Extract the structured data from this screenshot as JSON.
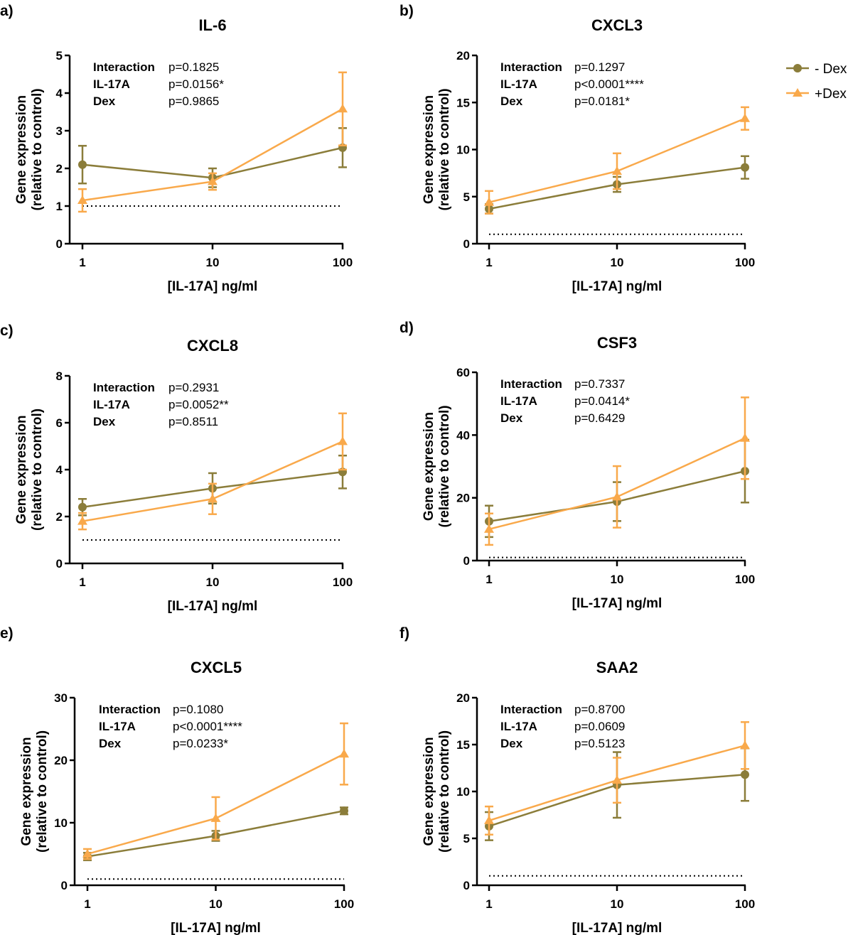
{
  "colors": {
    "minus_dex": "#8b7d3a",
    "plus_dex": "#f9a94b",
    "axis": "#000000"
  },
  "legend": {
    "placement": "top-right",
    "items": [
      {
        "label": "- Dex",
        "marker": "circle",
        "color": "#8b7d3a"
      },
      {
        "label": "+Dex",
        "marker": "triangle",
        "color": "#f9a94b"
      }
    ]
  },
  "chart_data": [
    {
      "panel": "a)",
      "type": "line",
      "title": "IL-6",
      "xlabel": "[IL-17A] ng/ml",
      "ylabel": [
        "Gene expression",
        "(relative to control)"
      ],
      "x": [
        1,
        10,
        100
      ],
      "xscale": "log",
      "xticks": [
        "1",
        "10",
        "100"
      ],
      "ylim": [
        0,
        5
      ],
      "yticks": [
        0,
        1,
        2,
        3,
        4,
        5
      ],
      "reference_line": 1,
      "stats": [
        {
          "label": "Interaction",
          "p": "p=0.1825"
        },
        {
          "label": "IL-17A",
          "p": "p=0.0156*"
        },
        {
          "label": "Dex",
          "p": "p=0.9865"
        }
      ],
      "series": [
        {
          "name": "- Dex",
          "values": [
            2.1,
            1.75,
            2.55
          ],
          "error": [
            0.5,
            0.25,
            0.52
          ]
        },
        {
          "name": "+Dex",
          "values": [
            1.15,
            1.65,
            3.58
          ],
          "error": [
            0.3,
            0.22,
            0.97
          ]
        }
      ]
    },
    {
      "panel": "b)",
      "type": "line",
      "title": "CXCL3",
      "xlabel": "[IL-17A] ng/ml",
      "ylabel": [
        "Gene expression",
        "(relative to control)"
      ],
      "x": [
        1,
        10,
        100
      ],
      "xscale": "log",
      "xticks": [
        "1",
        "10",
        "100"
      ],
      "ylim": [
        0,
        20
      ],
      "yticks": [
        0,
        5,
        10,
        15,
        20
      ],
      "reference_line": 1,
      "stats": [
        {
          "label": "Interaction",
          "p": "p=0.1297"
        },
        {
          "label": "IL-17A",
          "p": "p<0.0001****"
        },
        {
          "label": "Dex",
          "p": "p=0.0181*"
        }
      ],
      "series": [
        {
          "name": "- Dex",
          "values": [
            3.7,
            6.3,
            8.1
          ],
          "error": [
            0.5,
            0.8,
            1.2
          ]
        },
        {
          "name": "+Dex",
          "values": [
            4.4,
            7.7,
            13.3
          ],
          "error": [
            1.2,
            1.9,
            1.2
          ]
        }
      ]
    },
    {
      "panel": "c)",
      "type": "line",
      "title": "CXCL8",
      "xlabel": "[IL-17A] ng/ml",
      "ylabel": [
        "Gene expression",
        "(relative to control)"
      ],
      "x": [
        1,
        10,
        100
      ],
      "xscale": "log",
      "xticks": [
        "1",
        "10",
        "100"
      ],
      "ylim": [
        0,
        8
      ],
      "yticks": [
        0,
        2,
        4,
        6,
        8
      ],
      "reference_line": 1,
      "stats": [
        {
          "label": "Interaction",
          "p": "p=0.2931"
        },
        {
          "label": "IL-17A",
          "p": "p=0.0052**"
        },
        {
          "label": "Dex",
          "p": "p=0.8511"
        }
      ],
      "series": [
        {
          "name": "- Dex",
          "values": [
            2.4,
            3.2,
            3.9
          ],
          "error": [
            0.35,
            0.65,
            0.7
          ]
        },
        {
          "name": "+Dex",
          "values": [
            1.8,
            2.75,
            5.2
          ],
          "error": [
            0.35,
            0.65,
            1.2
          ]
        }
      ]
    },
    {
      "panel": "d)",
      "type": "line",
      "title": "CSF3",
      "xlabel": "[IL-17A] ng/ml",
      "ylabel": [
        "Gene expression",
        "(relative to control)"
      ],
      "x": [
        1,
        10,
        100
      ],
      "xscale": "log",
      "xticks": [
        "1",
        "10",
        "100"
      ],
      "ylim": [
        0,
        60
      ],
      "yticks": [
        0,
        20,
        40,
        60
      ],
      "reference_line": 1,
      "stats": [
        {
          "label": "Interaction",
          "p": "p=0.7337"
        },
        {
          "label": "IL-17A",
          "p": "p=0.0414*"
        },
        {
          "label": "Dex",
          "p": "p=0.6429"
        }
      ],
      "series": [
        {
          "name": "- Dex",
          "values": [
            12.5,
            18.8,
            28.5
          ],
          "error": [
            5,
            6.2,
            10
          ]
        },
        {
          "name": "+Dex",
          "values": [
            10,
            20.3,
            39
          ],
          "error": [
            5,
            9.8,
            13
          ]
        }
      ]
    },
    {
      "panel": "e)",
      "type": "line",
      "title": "CXCL5",
      "xlabel": "[IL-17A] ng/ml",
      "ylabel": [
        "Gene expression",
        "(relative to control)"
      ],
      "x": [
        1,
        10,
        100
      ],
      "xscale": "log",
      "xticks": [
        "1",
        "10",
        "100"
      ],
      "ylim": [
        0,
        30
      ],
      "yticks": [
        0,
        10,
        20,
        30
      ],
      "reference_line": 1,
      "stats": [
        {
          "label": "Interaction",
          "p": "p=0.1080"
        },
        {
          "label": "IL-17A",
          "p": "p<0.0001****"
        },
        {
          "label": "Dex",
          "p": "p=0.0233*"
        }
      ],
      "series": [
        {
          "name": "- Dex",
          "values": [
            4.6,
            7.9,
            11.9
          ],
          "error": [
            0.6,
            0.8,
            0.55
          ]
        },
        {
          "name": "+Dex",
          "values": [
            5.0,
            10.7,
            21
          ],
          "error": [
            0.8,
            3.4,
            4.9
          ]
        }
      ]
    },
    {
      "panel": "f)",
      "type": "line",
      "title": "SAA2",
      "xlabel": "[IL-17A] ng/ml",
      "ylabel": [
        "Gene expression",
        "(relative to control)"
      ],
      "x": [
        1,
        10,
        100
      ],
      "xscale": "log",
      "xticks": [
        "1",
        "10",
        "100"
      ],
      "ylim": [
        0,
        20
      ],
      "yticks": [
        0,
        5,
        10,
        15,
        20
      ],
      "reference_line": 1,
      "stats": [
        {
          "label": "Interaction",
          "p": "p=0.8700"
        },
        {
          "label": "IL-17A",
          "p": "p=0.0609"
        },
        {
          "label": "Dex",
          "p": "p=0.5123"
        }
      ],
      "series": [
        {
          "name": "- Dex",
          "values": [
            6.3,
            10.7,
            11.8
          ],
          "error": [
            1.5,
            3.5,
            2.8
          ]
        },
        {
          "name": "+Dex",
          "values": [
            6.9,
            11.2,
            14.9
          ],
          "error": [
            1.5,
            2.4,
            2.5
          ]
        }
      ]
    }
  ]
}
